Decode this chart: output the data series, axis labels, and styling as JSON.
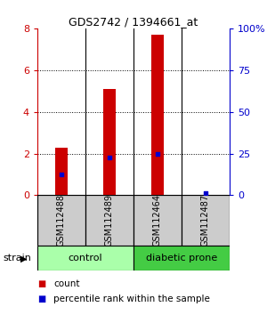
{
  "title": "GDS2742 / 1394661_at",
  "samples": [
    "GSM112488",
    "GSM112489",
    "GSM112464",
    "GSM112487"
  ],
  "counts": [
    2.3,
    5.1,
    7.7,
    0.0
  ],
  "percentiles": [
    12.5,
    22.5,
    25.0,
    1.5
  ],
  "ylim_left": [
    0,
    8
  ],
  "ylim_right": [
    0,
    100
  ],
  "yticks_left": [
    0,
    2,
    4,
    6,
    8
  ],
  "yticks_right": [
    0,
    25,
    50,
    75,
    100
  ],
  "ytick_labels_right": [
    "0",
    "25",
    "50",
    "75",
    "100%"
  ],
  "bar_color": "#cc0000",
  "dot_color": "#0000cc",
  "groups": [
    {
      "label": "control",
      "indices": [
        0,
        1
      ],
      "color": "#aaffaa"
    },
    {
      "label": "diabetic prone",
      "indices": [
        2,
        3
      ],
      "color": "#44cc44"
    }
  ],
  "grid_yticks": [
    2,
    4,
    6
  ],
  "background_color": "#ffffff",
  "sample_box_color": "#cccccc",
  "strain_label": "strain",
  "legend_items": [
    {
      "color": "#cc0000",
      "label": "count"
    },
    {
      "color": "#0000cc",
      "label": "percentile rank within the sample"
    }
  ],
  "bar_width": 0.25
}
